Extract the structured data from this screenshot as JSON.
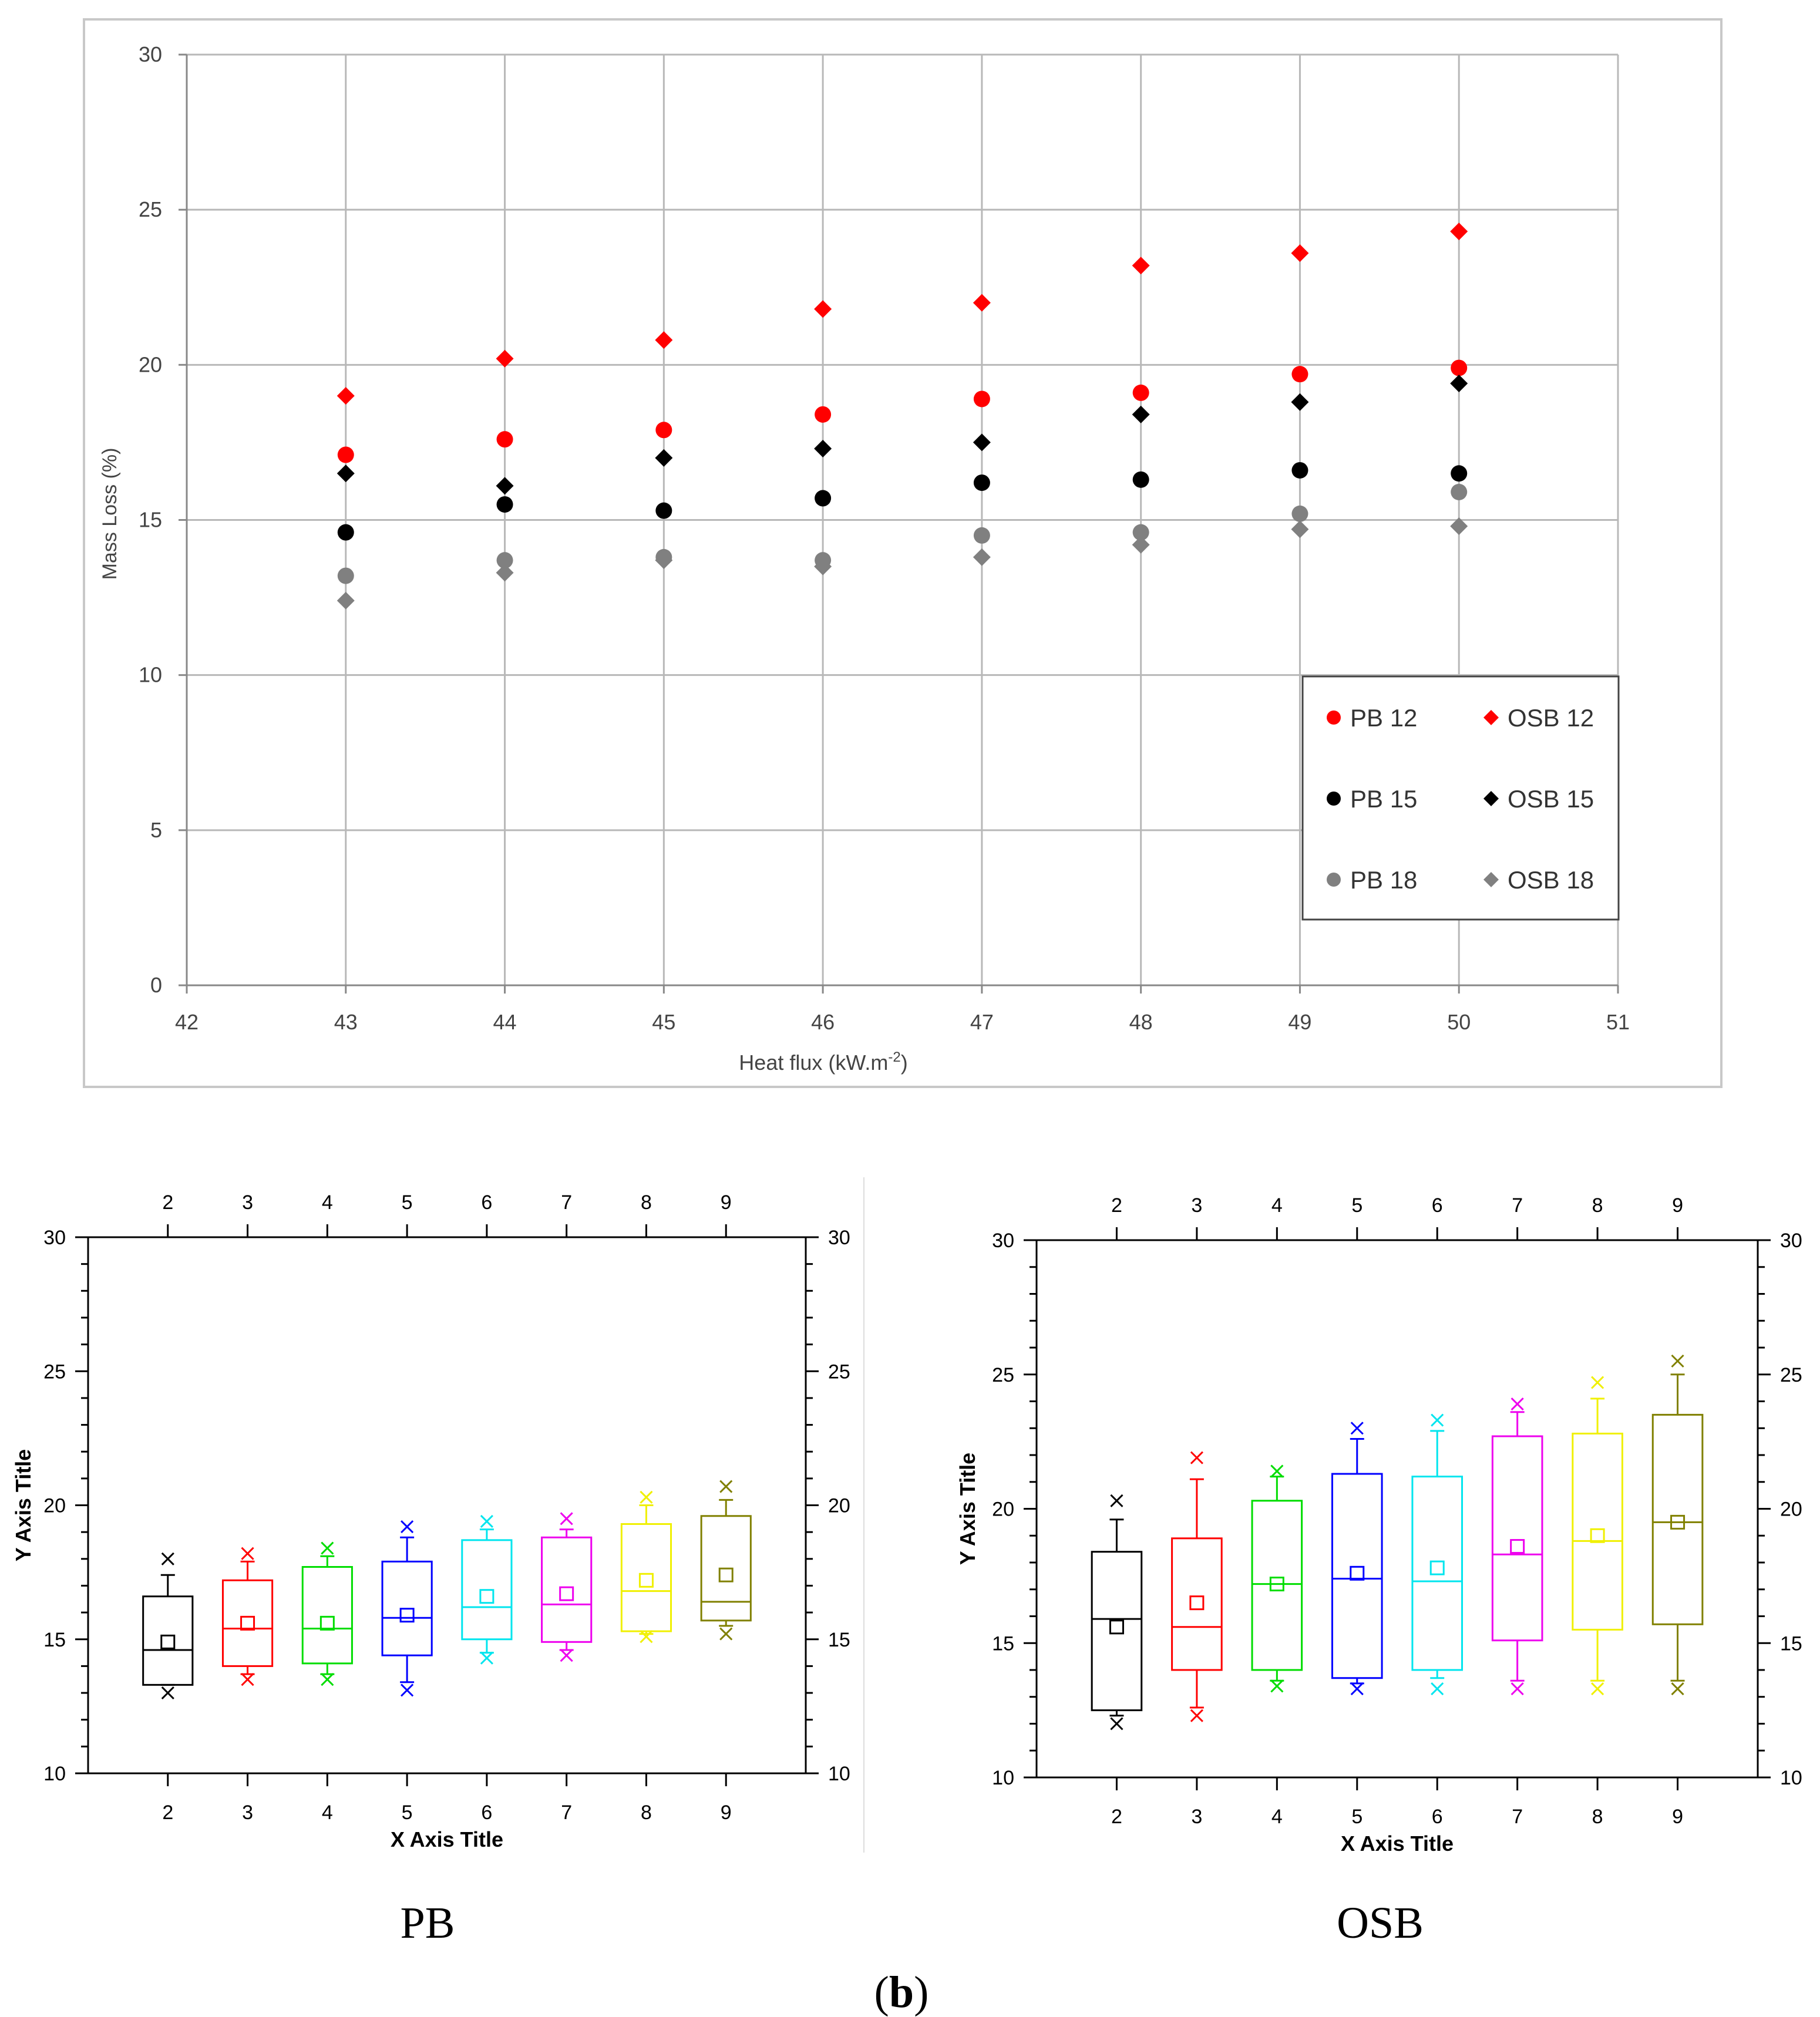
{
  "figure": {
    "panel_label": "(b)"
  },
  "chart_data": [
    {
      "type": "scatter",
      "title": "",
      "xlabel": "Heat flux (kW.m-2)",
      "xlabel_main": "Heat flux (kW.m",
      "xlabel_sup": "-2",
      "xlabel_tail": ")",
      "ylabel": "Mass Loss  (%)",
      "xlim": [
        42,
        51
      ],
      "ylim": [
        0,
        30
      ],
      "xticks": [
        42,
        43,
        44,
        45,
        46,
        47,
        48,
        49,
        50,
        51
      ],
      "yticks": [
        0,
        5,
        10,
        15,
        20,
        25,
        30
      ],
      "grid": true,
      "legend_position": "bottom-right",
      "series": [
        {
          "name": "PB 12",
          "marker": "circle",
          "color": "#ff0000",
          "x": [
            43,
            44,
            45,
            46,
            47,
            48,
            49,
            50
          ],
          "y": [
            17.1,
            17.6,
            17.9,
            18.4,
            18.9,
            19.1,
            19.7,
            19.9
          ]
        },
        {
          "name": "OSB 12",
          "marker": "diamond",
          "color": "#ff0000",
          "x": [
            43,
            44,
            45,
            46,
            47,
            48,
            49,
            50
          ],
          "y": [
            19.0,
            20.2,
            20.8,
            21.8,
            22.0,
            23.2,
            23.6,
            24.3
          ]
        },
        {
          "name": "PB 15",
          "marker": "circle",
          "color": "#000000",
          "x": [
            43,
            44,
            45,
            46,
            47,
            48,
            49,
            50
          ],
          "y": [
            14.6,
            15.5,
            15.3,
            15.7,
            16.2,
            16.3,
            16.6,
            16.5
          ]
        },
        {
          "name": "OSB 15",
          "marker": "diamond",
          "color": "#000000",
          "x": [
            43,
            44,
            45,
            46,
            47,
            48,
            49,
            50
          ],
          "y": [
            16.5,
            16.1,
            17.0,
            17.3,
            17.5,
            18.4,
            18.8,
            19.4
          ]
        },
        {
          "name": "PB 18",
          "marker": "circle",
          "color": "#808080",
          "x": [
            43,
            44,
            45,
            46,
            47,
            48,
            49,
            50
          ],
          "y": [
            13.2,
            13.7,
            13.8,
            13.7,
            14.5,
            14.6,
            15.2,
            15.9
          ]
        },
        {
          "name": "OSB 18",
          "marker": "diamond",
          "color": "#808080",
          "x": [
            43,
            44,
            45,
            46,
            47,
            48,
            49,
            50
          ],
          "y": [
            12.4,
            13.3,
            13.7,
            13.5,
            13.8,
            14.2,
            14.7,
            14.8
          ]
        }
      ]
    },
    {
      "type": "box",
      "caption": "PB",
      "xlabel": "X Axis Title",
      "ylabel": "Y Axis Title",
      "categories": [
        2,
        3,
        4,
        5,
        6,
        7,
        8,
        9
      ],
      "xlim": [
        1,
        10
      ],
      "ylim": [
        10,
        30
      ],
      "yticks": [
        10,
        15,
        20,
        25,
        30
      ],
      "colors": [
        "#000000",
        "#ff0000",
        "#00dd00",
        "#0000ff",
        "#00e5ee",
        "#ee00ee",
        "#f0f000",
        "#808000"
      ],
      "boxes": [
        {
          "x": 2,
          "q1": 13.3,
          "median": 14.6,
          "q3": 16.6,
          "mean": 14.9,
          "whisker_low": 13.3,
          "whisker_high": 17.4,
          "min": 13.0,
          "max": 18.0
        },
        {
          "x": 3,
          "q1": 14.0,
          "median": 15.4,
          "q3": 17.2,
          "mean": 15.6,
          "whisker_low": 13.7,
          "whisker_high": 17.9,
          "min": 13.5,
          "max": 18.2
        },
        {
          "x": 4,
          "q1": 14.1,
          "median": 15.4,
          "q3": 17.7,
          "mean": 15.6,
          "whisker_low": 13.7,
          "whisker_high": 18.1,
          "min": 13.5,
          "max": 18.4
        },
        {
          "x": 5,
          "q1": 14.4,
          "median": 15.8,
          "q3": 17.9,
          "mean": 15.9,
          "whisker_low": 13.4,
          "whisker_high": 18.8,
          "min": 13.1,
          "max": 19.2
        },
        {
          "x": 6,
          "q1": 15.0,
          "median": 16.2,
          "q3": 18.7,
          "mean": 16.6,
          "whisker_low": 14.5,
          "whisker_high": 19.1,
          "min": 14.3,
          "max": 19.4
        },
        {
          "x": 7,
          "q1": 14.9,
          "median": 16.3,
          "q3": 18.8,
          "mean": 16.7,
          "whisker_low": 14.6,
          "whisker_high": 19.1,
          "min": 14.4,
          "max": 19.5
        },
        {
          "x": 8,
          "q1": 15.3,
          "median": 16.8,
          "q3": 19.3,
          "mean": 17.2,
          "whisker_low": 15.2,
          "whisker_high": 20.0,
          "min": 15.1,
          "max": 20.3
        },
        {
          "x": 9,
          "q1": 15.7,
          "median": 16.4,
          "q3": 19.6,
          "mean": 17.4,
          "whisker_low": 15.5,
          "whisker_high": 20.2,
          "min": 15.2,
          "max": 20.7
        }
      ]
    },
    {
      "type": "box",
      "caption": "OSB",
      "xlabel": "X Axis Title",
      "ylabel": "Y Axis Title",
      "categories": [
        2,
        3,
        4,
        5,
        6,
        7,
        8,
        9
      ],
      "xlim": [
        1,
        10
      ],
      "ylim": [
        10,
        30
      ],
      "yticks": [
        10,
        15,
        20,
        25,
        30
      ],
      "colors": [
        "#000000",
        "#ff0000",
        "#00dd00",
        "#0000ff",
        "#00e5ee",
        "#ee00ee",
        "#f0f000",
        "#808000"
      ],
      "boxes": [
        {
          "x": 2,
          "q1": 12.5,
          "median": 15.9,
          "q3": 18.4,
          "mean": 15.6,
          "whisker_low": 12.3,
          "whisker_high": 19.6,
          "min": 12.0,
          "max": 20.3
        },
        {
          "x": 3,
          "q1": 14.0,
          "median": 15.6,
          "q3": 18.9,
          "mean": 16.5,
          "whisker_low": 12.6,
          "whisker_high": 21.1,
          "min": 12.3,
          "max": 21.9
        },
        {
          "x": 4,
          "q1": 14.0,
          "median": 17.2,
          "q3": 20.3,
          "mean": 17.2,
          "whisker_low": 13.6,
          "whisker_high": 21.2,
          "min": 13.4,
          "max": 21.4
        },
        {
          "x": 5,
          "q1": 13.7,
          "median": 17.4,
          "q3": 21.3,
          "mean": 17.6,
          "whisker_low": 13.5,
          "whisker_high": 22.6,
          "min": 13.3,
          "max": 23.0
        },
        {
          "x": 6,
          "q1": 14.0,
          "median": 17.3,
          "q3": 21.2,
          "mean": 17.8,
          "whisker_low": 13.7,
          "whisker_high": 22.9,
          "min": 13.3,
          "max": 23.3
        },
        {
          "x": 7,
          "q1": 15.1,
          "median": 18.3,
          "q3": 22.7,
          "mean": 18.6,
          "whisker_low": 13.6,
          "whisker_high": 23.6,
          "min": 13.3,
          "max": 23.9
        },
        {
          "x": 8,
          "q1": 15.5,
          "median": 18.8,
          "q3": 22.8,
          "mean": 19.0,
          "whisker_low": 13.6,
          "whisker_high": 24.1,
          "min": 13.3,
          "max": 24.7
        },
        {
          "x": 9,
          "q1": 15.7,
          "median": 19.5,
          "q3": 23.5,
          "mean": 19.5,
          "whisker_low": 13.6,
          "whisker_high": 25.0,
          "min": 13.3,
          "max": 25.5
        }
      ]
    }
  ]
}
